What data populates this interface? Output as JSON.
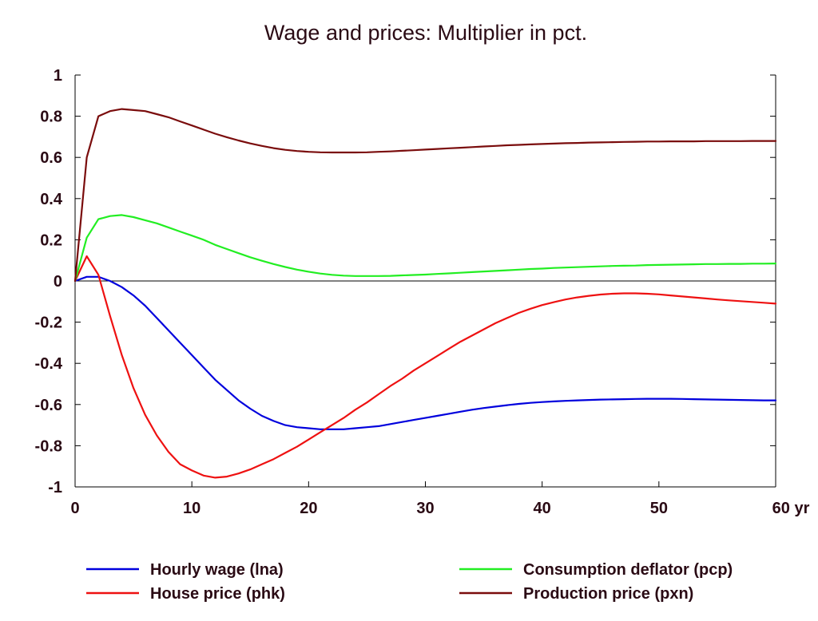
{
  "chart_data": {
    "type": "line",
    "title": "Wage and prices: Multiplier in pct.",
    "xlabel": "",
    "ylabel": "",
    "x_unit_label": "yr",
    "xlim": [
      0,
      60
    ],
    "ylim": [
      -1,
      1
    ],
    "x_ticks": [
      0,
      10,
      20,
      30,
      40,
      50,
      60
    ],
    "x_tick_labels": [
      "0",
      "10",
      "20",
      "30",
      "40",
      "50",
      "60 yr"
    ],
    "y_ticks": [
      1,
      0.8,
      0.6,
      0.4,
      0.2,
      0,
      -0.2,
      -0.4,
      -0.6,
      -0.8,
      -1
    ],
    "y_tick_labels": [
      "1",
      "0.8",
      "0.6",
      "0.4",
      "0.2",
      "0",
      "-0.2",
      "-0.4",
      "-0.6",
      "-0.8",
      "-1"
    ],
    "grid": false,
    "zero_line": true,
    "legend_position": "bottom",
    "x": [
      0,
      1,
      2,
      3,
      4,
      5,
      6,
      7,
      8,
      9,
      10,
      11,
      12,
      13,
      14,
      15,
      16,
      17,
      18,
      19,
      20,
      21,
      22,
      23,
      24,
      25,
      26,
      27,
      28,
      29,
      30,
      31,
      32,
      33,
      34,
      35,
      36,
      37,
      38,
      39,
      40,
      41,
      42,
      43,
      44,
      45,
      46,
      47,
      48,
      49,
      50,
      51,
      52,
      53,
      54,
      55,
      56,
      57,
      58,
      59,
      60
    ],
    "series": [
      {
        "name": "Hourly wage (lna)",
        "color": "#0000dd",
        "values": [
          0,
          0.02,
          0.02,
          0,
          -0.03,
          -0.07,
          -0.12,
          -0.18,
          -0.24,
          -0.3,
          -0.36,
          -0.42,
          -0.48,
          -0.53,
          -0.58,
          -0.62,
          -0.655,
          -0.68,
          -0.7,
          -0.71,
          -0.715,
          -0.72,
          -0.72,
          -0.72,
          -0.715,
          -0.71,
          -0.705,
          -0.695,
          -0.685,
          -0.675,
          -0.665,
          -0.655,
          -0.645,
          -0.635,
          -0.625,
          -0.617,
          -0.61,
          -0.603,
          -0.597,
          -0.592,
          -0.588,
          -0.585,
          -0.582,
          -0.58,
          -0.578,
          -0.576,
          -0.575,
          -0.574,
          -0.573,
          -0.572,
          -0.572,
          -0.572,
          -0.573,
          -0.574,
          -0.575,
          -0.576,
          -0.577,
          -0.578,
          -0.579,
          -0.58,
          -0.58
        ]
      },
      {
        "name": "House price (phk)",
        "color": "#ee1111",
        "values": [
          0,
          0.12,
          0.03,
          -0.17,
          -0.36,
          -0.52,
          -0.65,
          -0.75,
          -0.83,
          -0.89,
          -0.92,
          -0.945,
          -0.955,
          -0.95,
          -0.935,
          -0.915,
          -0.89,
          -0.865,
          -0.835,
          -0.805,
          -0.77,
          -0.735,
          -0.7,
          -0.665,
          -0.625,
          -0.59,
          -0.55,
          -0.51,
          -0.475,
          -0.435,
          -0.4,
          -0.365,
          -0.33,
          -0.295,
          -0.265,
          -0.235,
          -0.205,
          -0.18,
          -0.155,
          -0.135,
          -0.117,
          -0.103,
          -0.09,
          -0.08,
          -0.072,
          -0.066,
          -0.062,
          -0.06,
          -0.06,
          -0.062,
          -0.065,
          -0.07,
          -0.075,
          -0.08,
          -0.085,
          -0.09,
          -0.094,
          -0.098,
          -0.102,
          -0.106,
          -0.11
        ]
      },
      {
        "name": "Consumption deflator (pcp)",
        "color": "#22ee22",
        "values": [
          0,
          0.21,
          0.3,
          0.315,
          0.32,
          0.31,
          0.295,
          0.28,
          0.26,
          0.24,
          0.22,
          0.2,
          0.175,
          0.155,
          0.135,
          0.115,
          0.098,
          0.082,
          0.068,
          0.055,
          0.045,
          0.036,
          0.03,
          0.026,
          0.024,
          0.024,
          0.024,
          0.025,
          0.027,
          0.029,
          0.031,
          0.034,
          0.037,
          0.04,
          0.043,
          0.046,
          0.049,
          0.052,
          0.055,
          0.058,
          0.06,
          0.063,
          0.065,
          0.067,
          0.069,
          0.071,
          0.073,
          0.074,
          0.075,
          0.077,
          0.078,
          0.079,
          0.08,
          0.081,
          0.082,
          0.082,
          0.083,
          0.083,
          0.084,
          0.084,
          0.085
        ]
      },
      {
        "name": "Production price (pxn)",
        "color": "#7a0c0c",
        "values": [
          0,
          0.6,
          0.8,
          0.825,
          0.835,
          0.83,
          0.825,
          0.81,
          0.795,
          0.775,
          0.755,
          0.735,
          0.715,
          0.698,
          0.682,
          0.668,
          0.656,
          0.645,
          0.637,
          0.631,
          0.627,
          0.625,
          0.624,
          0.624,
          0.624,
          0.625,
          0.627,
          0.629,
          0.632,
          0.635,
          0.638,
          0.641,
          0.644,
          0.647,
          0.65,
          0.653,
          0.656,
          0.659,
          0.661,
          0.663,
          0.665,
          0.667,
          0.669,
          0.67,
          0.672,
          0.673,
          0.674,
          0.675,
          0.676,
          0.677,
          0.677,
          0.678,
          0.678,
          0.678,
          0.679,
          0.679,
          0.679,
          0.679,
          0.68,
          0.68,
          0.68
        ]
      }
    ]
  }
}
